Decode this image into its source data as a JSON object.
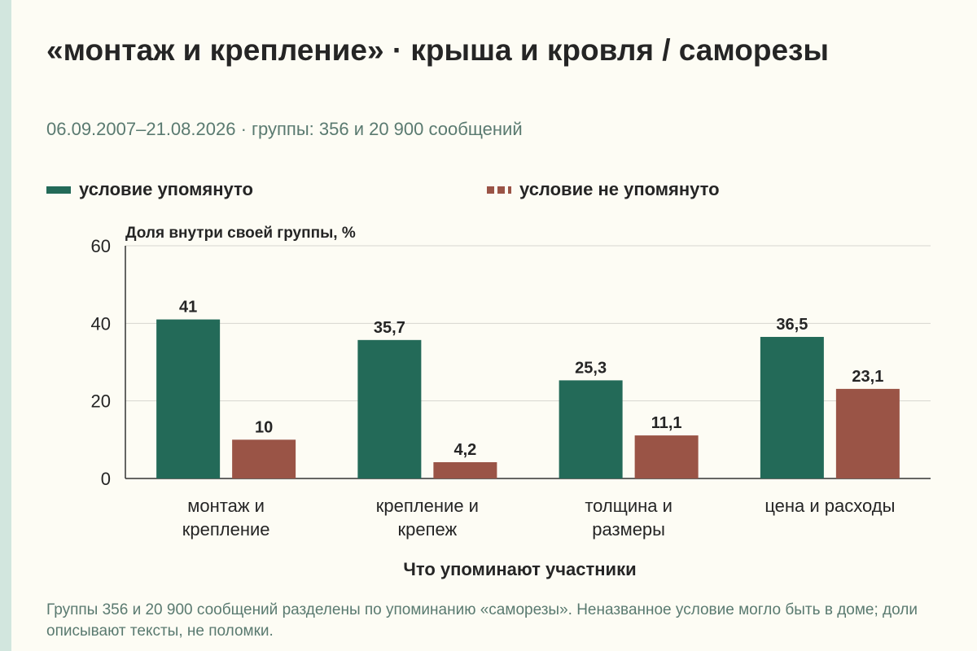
{
  "page": {
    "title": "«монтаж и крепление» · крыша и кровля / саморезы",
    "subtitle": "06.09.2007–21.08.2026 · группы: 356 и 20 900 сообщений",
    "footnote": "Группы 356 и 20 900 сообщений разделены по упоминанию «саморезы». Неназванное условие могло быть в доме; доли описывают тексты, не поломки.",
    "colors": {
      "background": "#fdfcf4",
      "accent_strip": "#d2e6de"
    }
  },
  "chart_data": {
    "type": "bar",
    "ylabel": "Доля внутри своей группы, %",
    "xlabel": "Что упоминают участники",
    "ylim": [
      0,
      60
    ],
    "yticks": [
      0,
      20,
      40,
      60
    ],
    "grid": true,
    "legend_position": "top",
    "categories": [
      [
        "монтаж и",
        "крепление"
      ],
      [
        "крепление и",
        "крепеж"
      ],
      [
        "толщина и",
        "размеры"
      ],
      [
        "цена и расходы"
      ]
    ],
    "series": [
      {
        "name": "условие упомянуто",
        "color": "#236a58",
        "values": [
          41,
          35.7,
          25.3,
          36.5
        ],
        "labels": [
          "41",
          "35,7",
          "25,3",
          "36,5"
        ]
      },
      {
        "name": "условие не упомянуто",
        "color": "#9a5446",
        "values": [
          10,
          4.2,
          11.1,
          23.1
        ],
        "labels": [
          "10",
          "4,2",
          "11,1",
          "23,1"
        ]
      }
    ]
  }
}
